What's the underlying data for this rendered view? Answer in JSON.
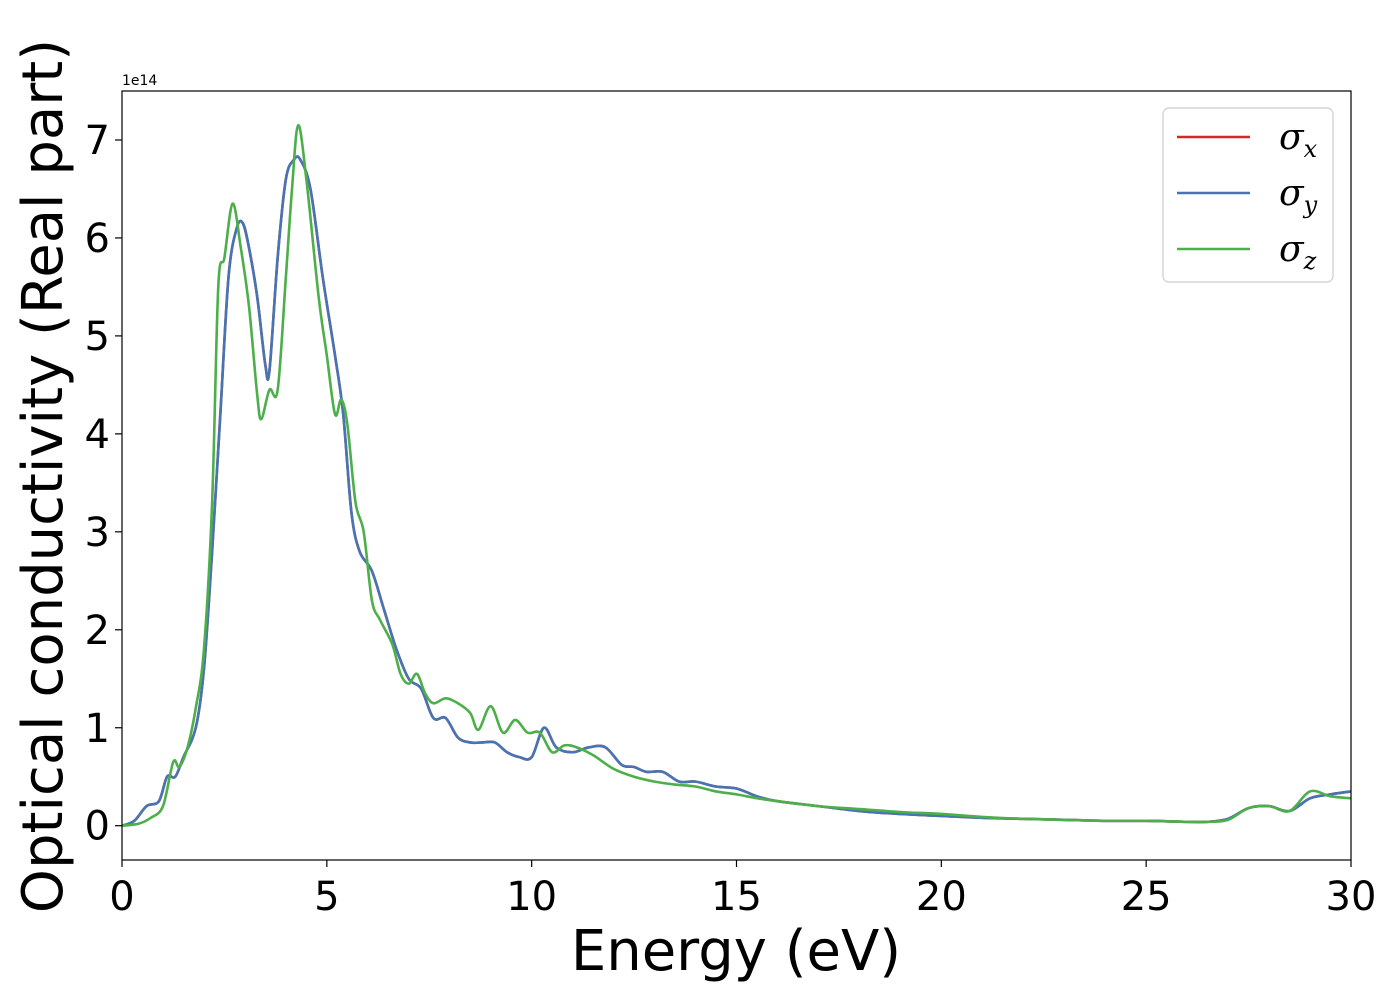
{
  "chart_data": {
    "type": "line",
    "title": "",
    "xlabel": "Energy (eV)",
    "ylabel": "Optical conductivity (Real part)",
    "y_offset_label": "1e14",
    "xlim": [
      0,
      30
    ],
    "ylim": [
      -0.35,
      7.5
    ],
    "xticks": [
      0,
      5,
      10,
      15,
      20,
      25,
      30
    ],
    "xtick_labels": [
      "0",
      "5",
      "10",
      "15",
      "20",
      "25",
      "30"
    ],
    "yticks": [
      0,
      1,
      2,
      3,
      4,
      5,
      6,
      7
    ],
    "ytick_labels": [
      "0",
      "1",
      "2",
      "3",
      "4",
      "5",
      "6",
      "7"
    ],
    "grid": false,
    "legend_position": "top-right",
    "series": [
      {
        "name": "σx",
        "legend_symbol": "σ",
        "legend_sub": "x",
        "color": "#d62728",
        "x": [
          0,
          0.3,
          0.6,
          0.9,
          1.1,
          1.3,
          1.5,
          1.8,
          2.0,
          2.2,
          2.4,
          2.6,
          2.8,
          2.95,
          3.1,
          3.3,
          3.5,
          3.6,
          3.8,
          4.0,
          4.2,
          4.35,
          4.6,
          4.9,
          5.2,
          5.4,
          5.6,
          5.8,
          6.1,
          6.4,
          6.7,
          7.0,
          7.3,
          7.6,
          7.9,
          8.2,
          8.5,
          8.8,
          9.1,
          9.4,
          9.7,
          10.0,
          10.3,
          10.6,
          11.0,
          11.4,
          11.8,
          12.2,
          12.5,
          12.8,
          13.2,
          13.6,
          14.0,
          14.5,
          15.0,
          15.5,
          16,
          17,
          18,
          19,
          20,
          21,
          22,
          23,
          24,
          25,
          26,
          26.5,
          27,
          27.5,
          28,
          28.5,
          29,
          29.5,
          30
        ],
        "y": [
          0,
          0.05,
          0.2,
          0.25,
          0.5,
          0.5,
          0.7,
          1.0,
          1.6,
          2.8,
          4.2,
          5.6,
          6.1,
          6.15,
          5.9,
          5.4,
          4.7,
          4.65,
          5.8,
          6.6,
          6.8,
          6.8,
          6.5,
          5.6,
          4.8,
          4.2,
          3.2,
          2.8,
          2.6,
          2.2,
          1.8,
          1.5,
          1.4,
          1.1,
          1.1,
          0.9,
          0.85,
          0.85,
          0.85,
          0.75,
          0.7,
          0.7,
          1.0,
          0.8,
          0.75,
          0.8,
          0.8,
          0.62,
          0.6,
          0.55,
          0.55,
          0.45,
          0.45,
          0.4,
          0.38,
          0.3,
          0.25,
          0.2,
          0.15,
          0.12,
          0.1,
          0.08,
          0.07,
          0.06,
          0.05,
          0.05,
          0.04,
          0.04,
          0.07,
          0.18,
          0.2,
          0.15,
          0.28,
          0.32,
          0.35
        ]
      },
      {
        "name": "σy",
        "legend_symbol": "σ",
        "legend_sub": "y",
        "color": "#4575b4",
        "x": [
          0,
          0.3,
          0.6,
          0.9,
          1.1,
          1.3,
          1.5,
          1.8,
          2.0,
          2.2,
          2.4,
          2.6,
          2.8,
          2.95,
          3.1,
          3.3,
          3.5,
          3.6,
          3.8,
          4.0,
          4.2,
          4.35,
          4.6,
          4.9,
          5.2,
          5.4,
          5.6,
          5.8,
          6.1,
          6.4,
          6.7,
          7.0,
          7.3,
          7.6,
          7.9,
          8.2,
          8.5,
          8.8,
          9.1,
          9.4,
          9.7,
          10.0,
          10.3,
          10.6,
          11.0,
          11.4,
          11.8,
          12.2,
          12.5,
          12.8,
          13.2,
          13.6,
          14.0,
          14.5,
          15.0,
          15.5,
          16,
          17,
          18,
          19,
          20,
          21,
          22,
          23,
          24,
          25,
          26,
          26.5,
          27,
          27.5,
          28,
          28.5,
          29,
          29.5,
          30
        ],
        "y": [
          0,
          0.05,
          0.2,
          0.25,
          0.5,
          0.5,
          0.7,
          1.0,
          1.6,
          2.8,
          4.2,
          5.6,
          6.1,
          6.15,
          5.9,
          5.4,
          4.7,
          4.65,
          5.8,
          6.6,
          6.8,
          6.8,
          6.5,
          5.6,
          4.8,
          4.2,
          3.2,
          2.8,
          2.6,
          2.2,
          1.8,
          1.5,
          1.4,
          1.1,
          1.1,
          0.9,
          0.85,
          0.85,
          0.85,
          0.75,
          0.7,
          0.7,
          1.0,
          0.8,
          0.75,
          0.8,
          0.8,
          0.62,
          0.6,
          0.55,
          0.55,
          0.45,
          0.45,
          0.4,
          0.38,
          0.3,
          0.25,
          0.2,
          0.15,
          0.12,
          0.1,
          0.08,
          0.07,
          0.06,
          0.05,
          0.05,
          0.04,
          0.04,
          0.07,
          0.18,
          0.2,
          0.15,
          0.28,
          0.32,
          0.35
        ]
      },
      {
        "name": "σz",
        "legend_symbol": "σ",
        "legend_sub": "z",
        "color": "#4daf4a",
        "x": [
          0,
          0.4,
          0.7,
          1.0,
          1.25,
          1.4,
          1.6,
          1.8,
          2.0,
          2.2,
          2.35,
          2.5,
          2.7,
          2.9,
          3.1,
          3.3,
          3.4,
          3.6,
          3.8,
          4.0,
          4.15,
          4.3,
          4.5,
          4.8,
          5.0,
          5.2,
          5.35,
          5.5,
          5.7,
          5.9,
          6.1,
          6.3,
          6.6,
          6.8,
          7.0,
          7.2,
          7.4,
          7.6,
          7.9,
          8.2,
          8.5,
          8.7,
          9.0,
          9.3,
          9.6,
          9.9,
          10.2,
          10.5,
          10.8,
          11.1,
          11.5,
          12.0,
          12.5,
          13.0,
          13.5,
          14.0,
          14.5,
          15.0,
          15.5,
          16.0,
          17,
          18,
          19,
          20,
          21,
          22,
          23,
          24,
          25,
          26,
          26.5,
          27,
          27.5,
          28,
          28.5,
          29,
          29.5,
          30
        ],
        "y": [
          0,
          0.02,
          0.08,
          0.2,
          0.65,
          0.6,
          0.8,
          1.2,
          1.8,
          3.3,
          5.5,
          5.8,
          6.35,
          5.9,
          5.3,
          4.4,
          4.15,
          4.45,
          4.45,
          5.6,
          6.5,
          7.15,
          6.6,
          5.4,
          4.8,
          4.2,
          4.35,
          4.1,
          3.3,
          3.0,
          2.3,
          2.1,
          1.85,
          1.55,
          1.45,
          1.55,
          1.35,
          1.25,
          1.3,
          1.25,
          1.15,
          0.98,
          1.22,
          0.95,
          1.08,
          0.95,
          0.95,
          0.75,
          0.82,
          0.8,
          0.72,
          0.58,
          0.5,
          0.45,
          0.42,
          0.4,
          0.35,
          0.32,
          0.28,
          0.25,
          0.2,
          0.17,
          0.14,
          0.12,
          0.09,
          0.07,
          0.06,
          0.05,
          0.05,
          0.04,
          0.04,
          0.06,
          0.18,
          0.2,
          0.15,
          0.35,
          0.3,
          0.28
        ]
      }
    ]
  }
}
